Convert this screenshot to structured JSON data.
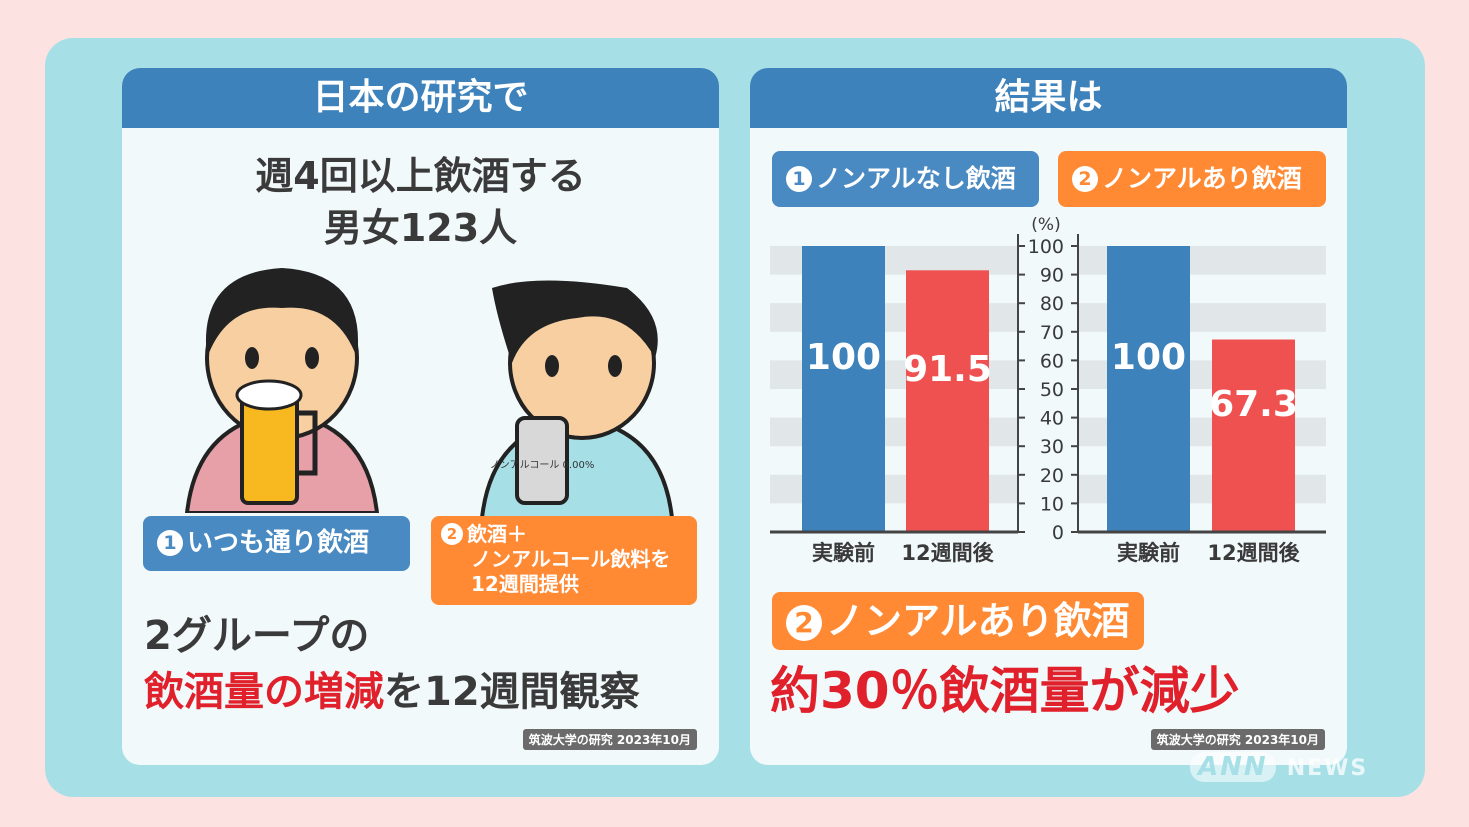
{
  "left_card": {
    "header": "日本の研究で",
    "subject_line1": "週4回以上飲酒する",
    "subject_line2": "男女123人",
    "group1_tag": {
      "num": "1",
      "label": "いつも通り飲酒"
    },
    "group2_tag": {
      "num": "2",
      "line1": "飲酒＋",
      "line2": "ノンアルコール飲料を",
      "line3": "12週間提供"
    },
    "can_label": "ノンアルコール 0.00%",
    "summary_line1": "2グループの",
    "summary_line2_red": "飲酒量の増減",
    "summary_line2_rest": "を12週間観察",
    "source": "筑波大学の研究 2023年10月"
  },
  "right_card": {
    "header": "結果は",
    "legend1": {
      "num": "1",
      "label": "ノンアルなし飲酒"
    },
    "legend2": {
      "num": "2",
      "label": "ノンアルあり飲酒"
    },
    "result_tag": {
      "num": "2",
      "label": "ノンアルあり飲酒"
    },
    "result_text": "約30％飲酒量が減少",
    "source": "筑波大学の研究 2023年10月"
  },
  "watermark": {
    "brand": "ANN",
    "suffix": "NEWS"
  },
  "colors": {
    "blue": "#3d82bb",
    "red": "#ef5050",
    "orange": "#ff8a33",
    "accent_red": "#e0202a"
  },
  "chart_data": [
    {
      "type": "bar",
      "title": "ノンアルなし飲酒",
      "categories": [
        "実験前",
        "12週間後"
      ],
      "values": [
        100,
        91.5
      ],
      "value_labels": [
        "100",
        "91.5"
      ],
      "ylabel": "(%)",
      "ylim": [
        0,
        100
      ],
      "yticks": [
        "0",
        "10",
        "20",
        "30",
        "40",
        "50",
        "60",
        "70",
        "80",
        "90",
        "100"
      ]
    },
    {
      "type": "bar",
      "title": "ノンアルあり飲酒",
      "categories": [
        "実験前",
        "12週間後"
      ],
      "values": [
        100,
        67.3
      ],
      "value_labels": [
        "100",
        "67.3"
      ],
      "ylabel": "(%)",
      "ylim": [
        0,
        100
      ]
    }
  ]
}
